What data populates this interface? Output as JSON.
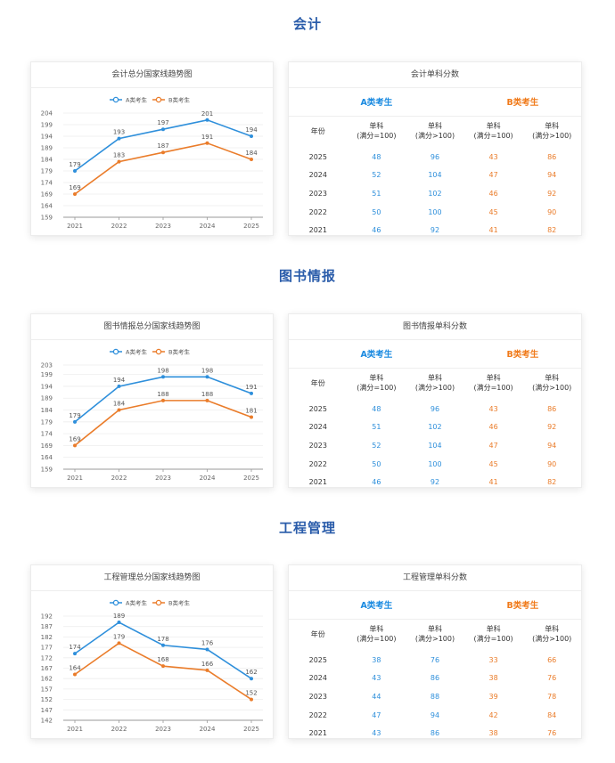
{
  "sections": [
    {
      "title": "会计",
      "chart_title": "会计总分国家线趋势图",
      "table_title": "会计单科分数",
      "table": {
        "cat_a": "A类考生",
        "cat_b": "B类考生",
        "col_year": "年份",
        "col_a1": "单科\n(满分=100)",
        "col_a2": "单科\n(满分>100)",
        "col_b1": "单科\n(满分=100)",
        "col_b2": "单科\n(满分>100)",
        "rows": [
          [
            "2025",
            "48",
            "96",
            "43",
            "86"
          ],
          [
            "2024",
            "52",
            "104",
            "47",
            "94"
          ],
          [
            "2023",
            "51",
            "102",
            "46",
            "92"
          ],
          [
            "2022",
            "50",
            "100",
            "45",
            "90"
          ],
          [
            "2021",
            "46",
            "92",
            "41",
            "82"
          ]
        ]
      },
      "chart_data": {
        "type": "line",
        "title": "会计总分国家线趋势图",
        "x": [
          "2021",
          "2022",
          "2023",
          "2024",
          "2025"
        ],
        "yticks": [
          159,
          164,
          169,
          174,
          179,
          184,
          189,
          194,
          199,
          204
        ],
        "ylim": [
          159,
          204
        ],
        "legend": "top-center",
        "series": [
          {
            "name": "A类考生",
            "color": "#2e8fdb",
            "values": [
              179,
              193,
              197,
              201,
              194
            ]
          },
          {
            "name": "B类考生",
            "color": "#ea7c2a",
            "values": [
              169,
              183,
              187,
              191,
              184
            ]
          }
        ]
      }
    },
    {
      "title": "图书情报",
      "chart_title": "图书情报总分国家线趋势图",
      "table_title": "图书情报单科分数",
      "table": {
        "cat_a": "A类考生",
        "cat_b": "B类考生",
        "col_year": "年份",
        "col_a1": "单科\n(满分=100)",
        "col_a2": "单科\n(满分>100)",
        "col_b1": "单科\n(满分=100)",
        "col_b2": "单科\n(满分>100)",
        "rows": [
          [
            "2025",
            "48",
            "96",
            "43",
            "86"
          ],
          [
            "2024",
            "51",
            "102",
            "46",
            "92"
          ],
          [
            "2023",
            "52",
            "104",
            "47",
            "94"
          ],
          [
            "2022",
            "50",
            "100",
            "45",
            "90"
          ],
          [
            "2021",
            "46",
            "92",
            "41",
            "82"
          ]
        ]
      },
      "chart_data": {
        "type": "line",
        "title": "图书情报总分国家线趋势图",
        "x": [
          "2021",
          "2022",
          "2023",
          "2024",
          "2025"
        ],
        "yticks": [
          159,
          164,
          169,
          174,
          179,
          184,
          189,
          194,
          199,
          203
        ],
        "ylim": [
          159,
          203
        ],
        "legend": "top-center",
        "series": [
          {
            "name": "A类考生",
            "color": "#2e8fdb",
            "values": [
              179,
              194,
              198,
              198,
              191
            ]
          },
          {
            "name": "B类考生",
            "color": "#ea7c2a",
            "values": [
              169,
              184,
              188,
              188,
              181
            ]
          }
        ]
      }
    },
    {
      "title": "工程管理",
      "chart_title": "工程管理总分国家线趋势图",
      "table_title": "工程管理单科分数",
      "table": {
        "cat_a": "A类考生",
        "cat_b": "B类考生",
        "col_year": "年份",
        "col_a1": "单科\n(满分=100)",
        "col_a2": "单科\n(满分>100)",
        "col_b1": "单科\n(满分=100)",
        "col_b2": "单科\n(满分>100)",
        "rows": [
          [
            "2025",
            "38",
            "76",
            "33",
            "66"
          ],
          [
            "2024",
            "43",
            "86",
            "38",
            "76"
          ],
          [
            "2023",
            "44",
            "88",
            "39",
            "78"
          ],
          [
            "2022",
            "47",
            "94",
            "42",
            "84"
          ],
          [
            "2021",
            "43",
            "86",
            "38",
            "76"
          ]
        ]
      },
      "chart_data": {
        "type": "line",
        "title": "工程管理总分国家线趋势图",
        "x": [
          "2021",
          "2022",
          "2023",
          "2024",
          "2025"
        ],
        "yticks": [
          142,
          147,
          152,
          157,
          162,
          167,
          172,
          177,
          182,
          187,
          192
        ],
        "ylim": [
          142,
          192
        ],
        "legend": "top-center",
        "series": [
          {
            "name": "A类考生",
            "color": "#2e8fdb",
            "values": [
              174,
              189,
              178,
              176,
              162
            ]
          },
          {
            "name": "B类考生",
            "color": "#ea7c2a",
            "values": [
              164,
              179,
              168,
              166,
              152
            ]
          }
        ]
      }
    }
  ]
}
